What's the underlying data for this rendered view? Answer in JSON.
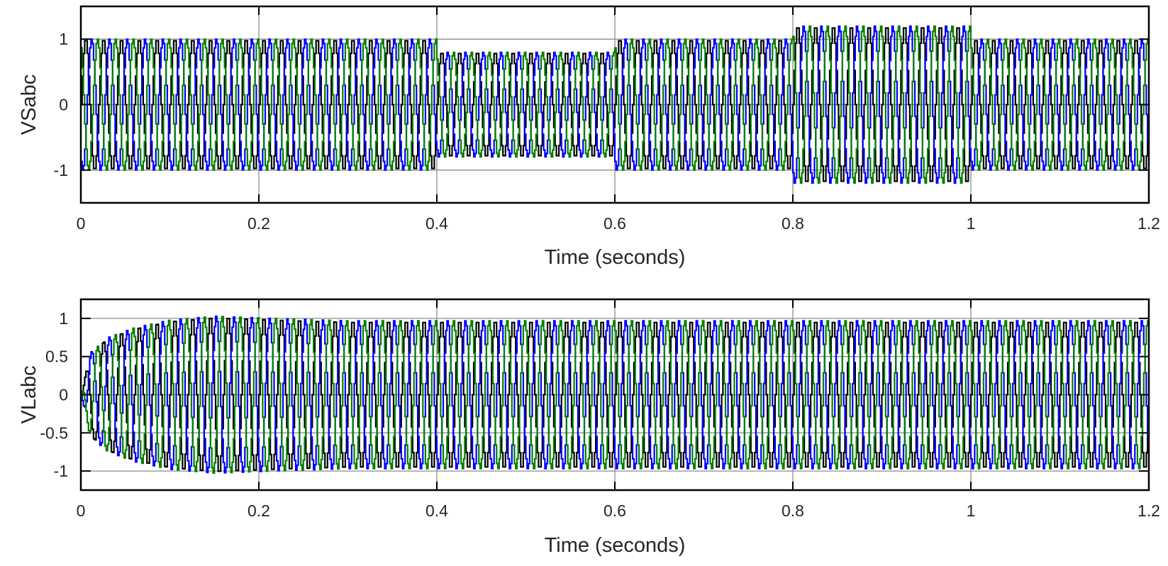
{
  "chart_data": [
    {
      "type": "line",
      "ylabel": "VSabc",
      "xlabel": "Time (seconds)",
      "xlim": [
        0,
        1.2
      ],
      "ylim": [
        -1.5,
        1.5
      ],
      "xticks": [
        0,
        0.2,
        0.4,
        0.6,
        0.8,
        1,
        1.2
      ],
      "xtick_labels": [
        "0",
        "0.2",
        "0.4",
        "0.6",
        "0.8",
        "1",
        "1.2"
      ],
      "yticks": [
        -1,
        0,
        1
      ],
      "ytick_labels": [
        "-1",
        "0",
        "1"
      ],
      "grid": true,
      "frequency_hz": 50,
      "waveform": "three-phase stepped sinusoid",
      "amplitude_envelope": [
        [
          0,
          1.0
        ],
        [
          0.4,
          0.8
        ],
        [
          0.6,
          1.0
        ],
        [
          0.8,
          1.2
        ],
        [
          1.0,
          1.0
        ],
        [
          1.2,
          1.0
        ]
      ],
      "envelope_mode": "step",
      "series": [
        {
          "phase_deg": 0,
          "color": "#000000"
        },
        {
          "phase_deg": -120,
          "color": "#0000ff"
        },
        {
          "phase_deg": 120,
          "color": "#007f00"
        }
      ]
    },
    {
      "type": "line",
      "ylabel": "VLabc",
      "xlabel": "Time (seconds)",
      "xlim": [
        0,
        1.2
      ],
      "ylim": [
        -1.25,
        1.25
      ],
      "xticks": [
        0,
        0.2,
        0.4,
        0.6,
        0.8,
        1,
        1.2
      ],
      "xtick_labels": [
        "0",
        "0.2",
        "0.4",
        "0.6",
        "0.8",
        "1",
        "1.2"
      ],
      "yticks": [
        -1,
        -0.5,
        0,
        0.5,
        1
      ],
      "ytick_labels": [
        "-1",
        "-0.5",
        "0",
        "0.5",
        "1"
      ],
      "grid": true,
      "frequency_hz": 50,
      "waveform": "three-phase stepped sinusoid",
      "amplitude_envelope": [
        [
          0,
          0.0
        ],
        [
          0.01,
          0.55
        ],
        [
          0.03,
          0.75
        ],
        [
          0.06,
          0.88
        ],
        [
          0.1,
          0.98
        ],
        [
          0.15,
          1.03
        ],
        [
          0.22,
          1.0
        ],
        [
          0.3,
          0.97
        ],
        [
          1.2,
          0.97
        ]
      ],
      "envelope_mode": "linear",
      "series": [
        {
          "phase_deg": 0,
          "color": "#000000"
        },
        {
          "phase_deg": -120,
          "color": "#0000ff"
        },
        {
          "phase_deg": 120,
          "color": "#007f00"
        }
      ]
    }
  ]
}
